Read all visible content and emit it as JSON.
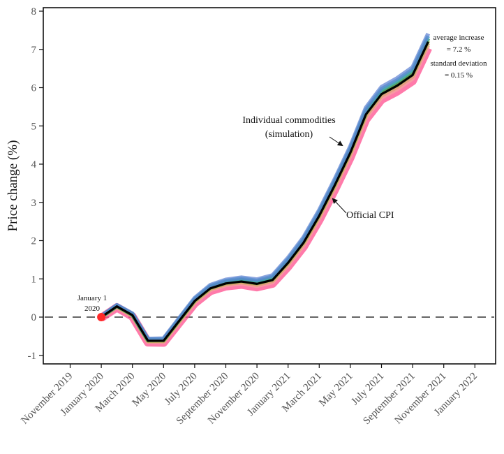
{
  "chart_data": {
    "type": "line",
    "title": "",
    "xlabel": "",
    "ylabel": "Price change (%)",
    "ylim": [
      -1.2,
      8.1
    ],
    "yticks": [
      -1,
      0,
      1,
      2,
      3,
      4,
      5,
      6,
      7,
      8
    ],
    "xticks": [
      "November 2019",
      "January 2020",
      "March 2020",
      "May 2020",
      "July 2020",
      "September 2020",
      "November 2020",
      "January 2021",
      "March 2021",
      "May 2021",
      "July 2021",
      "September 2021",
      "November 2021",
      "January 2022"
    ],
    "x": [
      "2020-01",
      "2020-02",
      "2020-03",
      "2020-04",
      "2020-05",
      "2020-06",
      "2020-07",
      "2020-08",
      "2020-09",
      "2020-10",
      "2020-11",
      "2020-12",
      "2021-01",
      "2021-02",
      "2021-03",
      "2021-04",
      "2021-05",
      "2021-06",
      "2021-07",
      "2021-08",
      "2021-09",
      "2021-10"
    ],
    "series": [
      {
        "name": "Official CPI",
        "color": "#000000",
        "values": [
          0.0,
          0.28,
          0.05,
          -0.62,
          -0.62,
          -0.1,
          0.42,
          0.75,
          0.88,
          0.93,
          0.87,
          0.97,
          1.42,
          1.95,
          2.65,
          3.45,
          4.3,
          5.3,
          5.83,
          6.05,
          6.33,
          7.2
        ]
      }
    ],
    "simulation_band": {
      "name": "Individual commodities (simulation)",
      "colors": [
        "#ff4d8d",
        "#f3a6a0",
        "#d9a070",
        "#9bbb3a",
        "#2f8f4e",
        "#3da7c4",
        "#5b7fd1"
      ],
      "lower_offset": 0.13,
      "upper_offset": 0.17
    },
    "reference_line": {
      "y": 0,
      "style": "dashed",
      "color": "#666666"
    },
    "start_marker": {
      "x": "2020-01",
      "y": 0,
      "color": "#ff2a2a"
    },
    "annotations": {
      "start_label_line1": "January 1",
      "start_label_line2": "2020",
      "simulation_label_line1": "Individual commodities",
      "simulation_label_line2": "(simulation)",
      "cpi_label": "Official CPI",
      "avg_label": "average increase",
      "avg_value": "= 7.2 %",
      "sd_label": "standard deviation",
      "sd_value": "= 0.15 %"
    },
    "grid": false
  }
}
